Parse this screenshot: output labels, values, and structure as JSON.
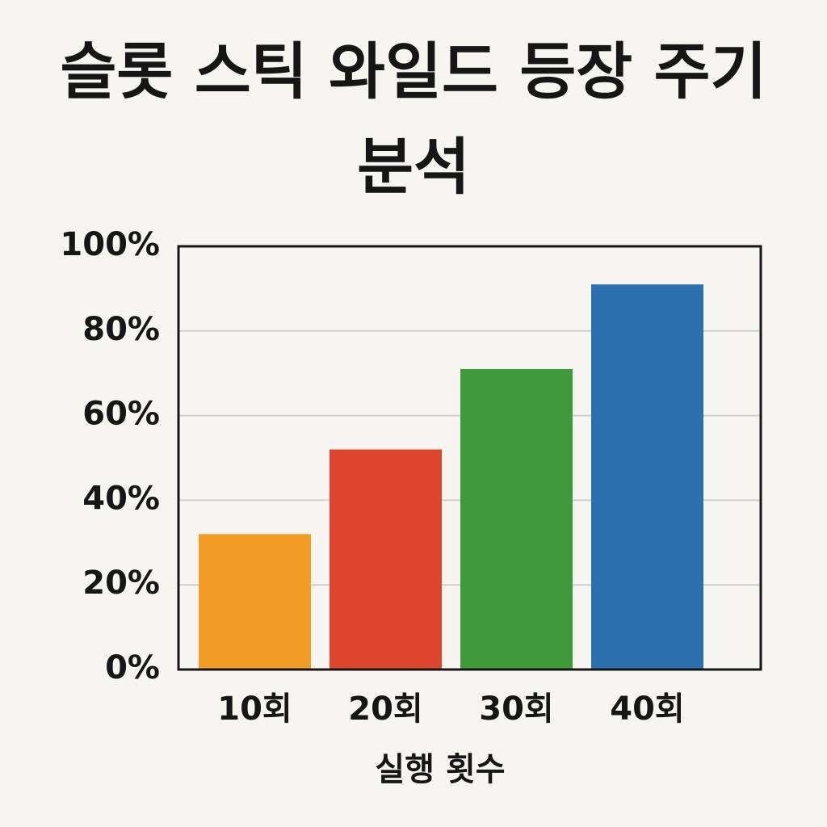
{
  "chart_data": {
    "type": "bar",
    "title": "슬롯 스틱 와일드 등장 주기 분석",
    "categories": [
      "10회",
      "20회",
      "30회",
      "40회"
    ],
    "values": [
      32,
      52,
      71,
      91
    ],
    "colors": [
      "#f39c26",
      "#df442c",
      "#3f9a3b",
      "#2a6fae"
    ],
    "x_label": "실행 횟수",
    "ylim": [
      0,
      100
    ],
    "yticks": [
      {
        "value": 0,
        "label": "0%"
      },
      {
        "value": 20,
        "label": "20%"
      },
      {
        "value": 40,
        "label": "40%"
      },
      {
        "value": 60,
        "label": "60%"
      },
      {
        "value": 80,
        "label": "80%"
      },
      {
        "value": 100,
        "label": "100%"
      }
    ],
    "grid": true
  }
}
